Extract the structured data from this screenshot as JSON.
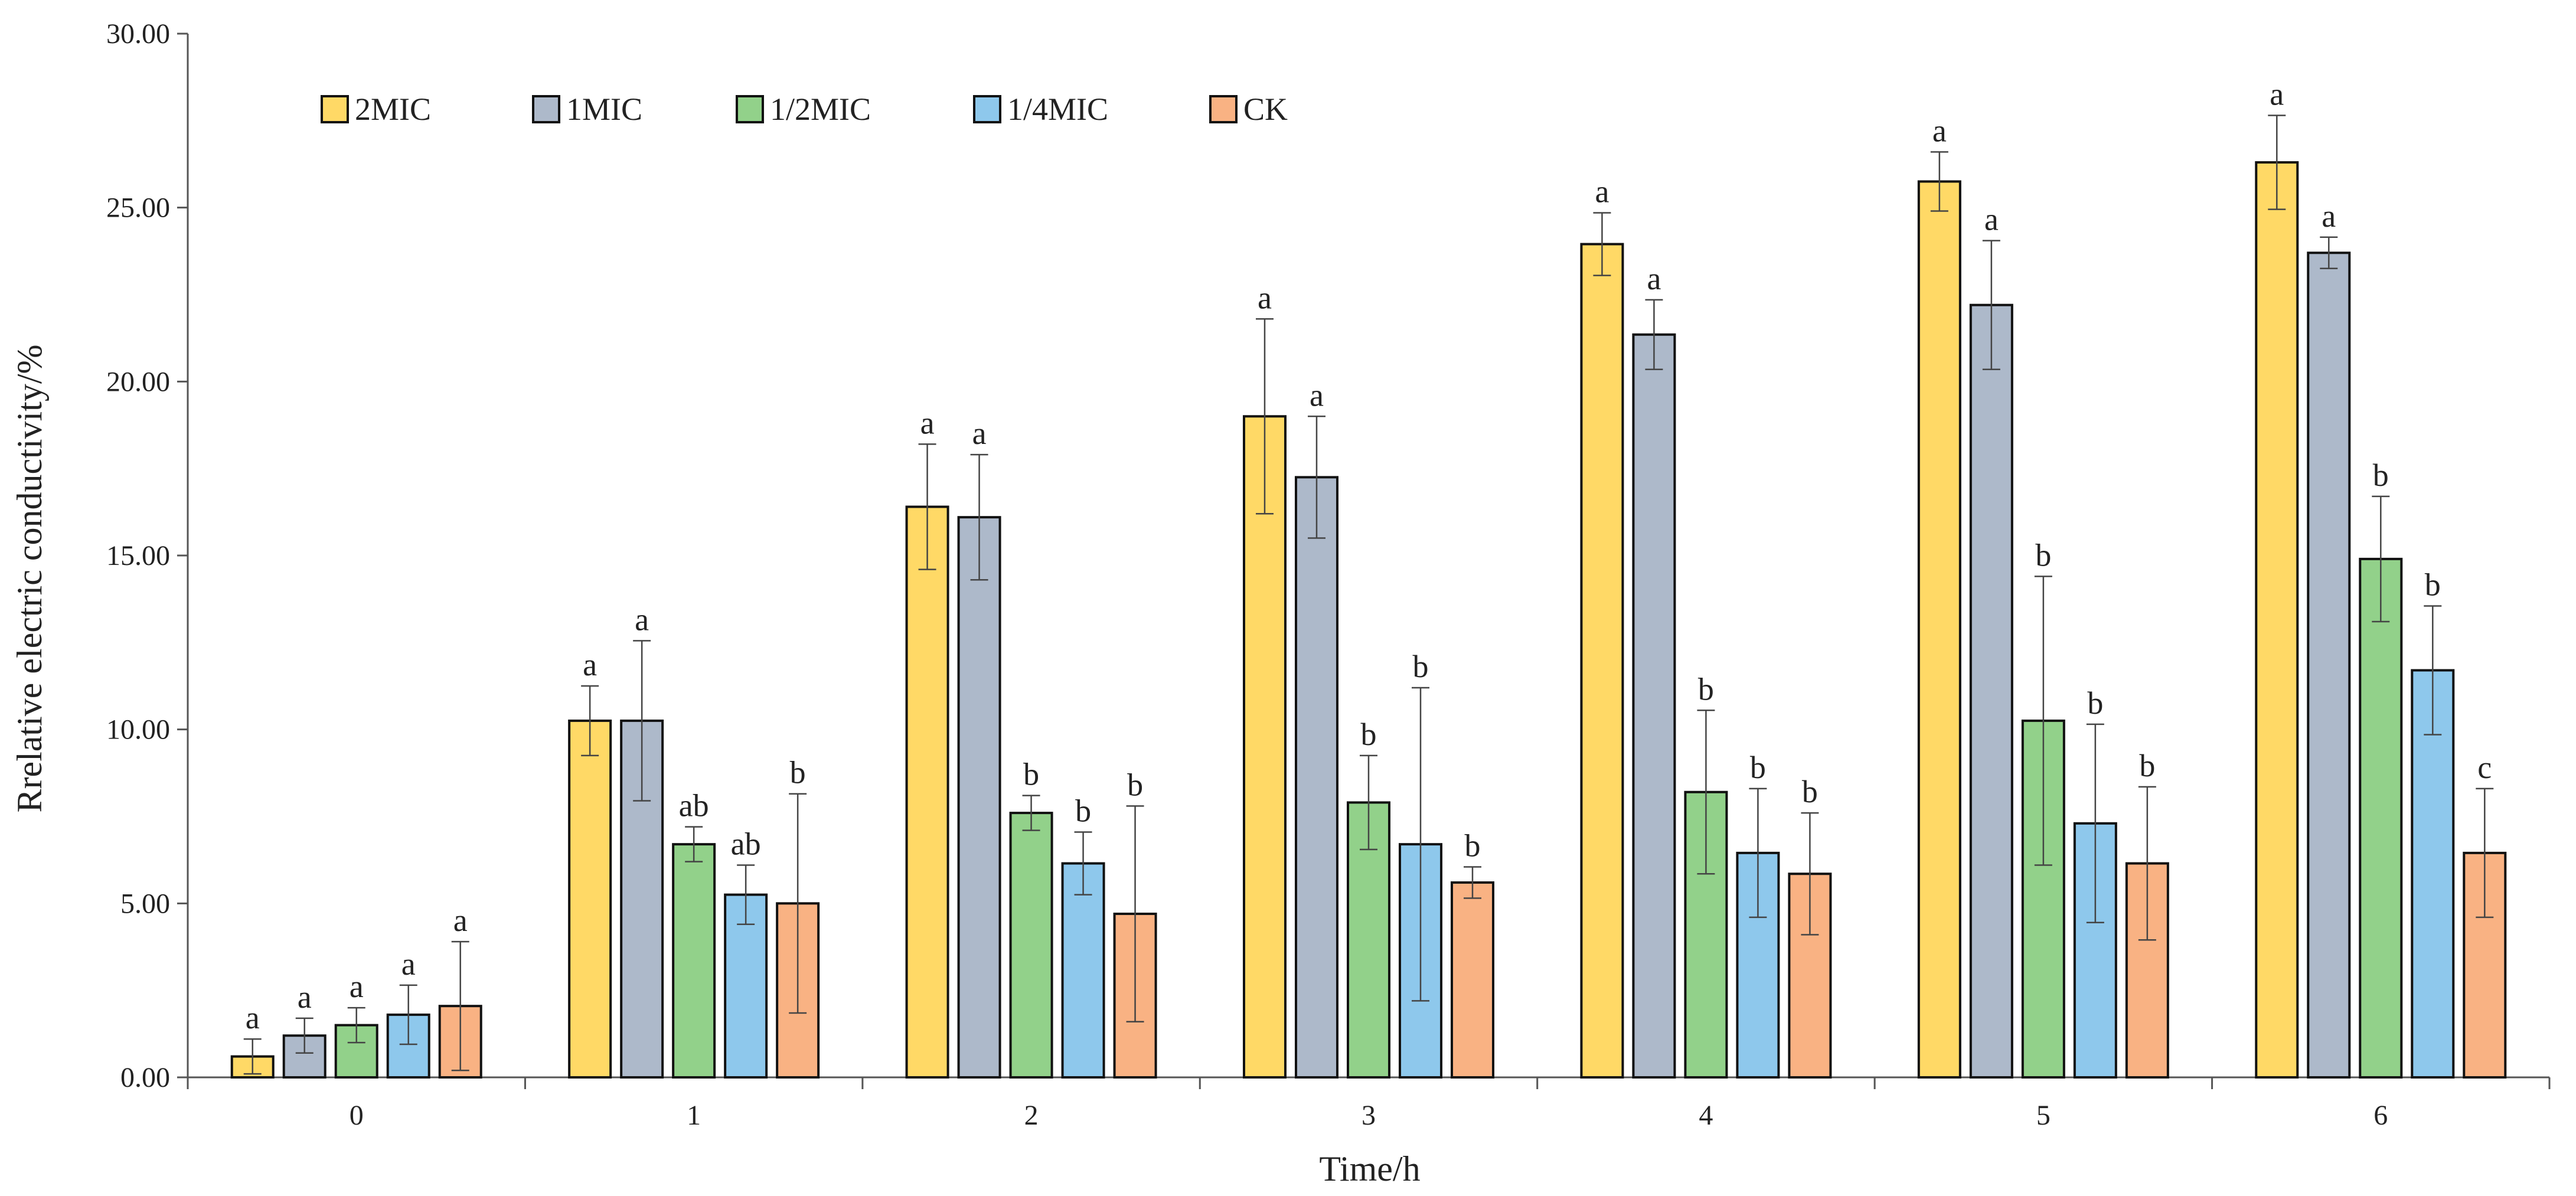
{
  "chart_data": {
    "type": "bar",
    "title": "",
    "xlabel": "Time/h",
    "ylabel": "Rrelative electric conductivity/%",
    "ylim": [
      0,
      30
    ],
    "yticks": [
      "0.00",
      "5.00",
      "10.00",
      "15.00",
      "20.00",
      "25.00",
      "30.00"
    ],
    "ytick_values": [
      0,
      5,
      10,
      15,
      20,
      25,
      30
    ],
    "categories": [
      "0",
      "1",
      "2",
      "3",
      "4",
      "5",
      "6"
    ],
    "legend_position": "top-left",
    "series": [
      {
        "name": "2MIC",
        "color": "#FFD966",
        "values": [
          0.6,
          10.25,
          16.4,
          19.0,
          23.95,
          25.75,
          26.3
        ],
        "errors": [
          0.5,
          1.0,
          1.8,
          2.8,
          0.9,
          0.85,
          1.35
        ],
        "labels": [
          "a",
          "a",
          "a",
          "a",
          "a",
          "a",
          "a"
        ]
      },
      {
        "name": "1MIC",
        "color": "#ADB9CA",
        "values": [
          1.2,
          10.25,
          16.1,
          17.25,
          21.35,
          22.2,
          23.7
        ],
        "errors": [
          0.5,
          2.3,
          1.8,
          1.75,
          1.0,
          1.85,
          0.45
        ],
        "labels": [
          "a",
          "a",
          "a",
          "a",
          "a",
          "a",
          "a"
        ]
      },
      {
        "name": "1/2MIC",
        "color": "#92D18A",
        "values": [
          1.5,
          6.7,
          7.6,
          7.9,
          8.2,
          10.25,
          14.9
        ],
        "errors": [
          0.5,
          0.5,
          0.5,
          1.35,
          2.35,
          4.15,
          1.8
        ],
        "labels": [
          "a",
          "ab",
          "b",
          "b",
          "b",
          "b",
          "b"
        ]
      },
      {
        "name": "1/4MIC",
        "color": "#8EC8EC",
        "values": [
          1.8,
          5.25,
          6.15,
          6.7,
          6.45,
          7.3,
          11.7
        ],
        "errors": [
          0.85,
          0.85,
          0.9,
          4.5,
          1.85,
          2.85,
          1.85
        ],
        "labels": [
          "a",
          "ab",
          "b",
          "b",
          "b",
          "b",
          "b"
        ]
      },
      {
        "name": "CK",
        "color": "#F9B283",
        "values": [
          2.05,
          5.0,
          4.7,
          5.6,
          5.85,
          6.15,
          6.45
        ],
        "errors": [
          1.85,
          3.15,
          3.1,
          0.45,
          1.75,
          2.2,
          1.85
        ],
        "labels": [
          "a",
          "b",
          "b",
          "b",
          "b",
          "b",
          "c"
        ]
      }
    ]
  }
}
